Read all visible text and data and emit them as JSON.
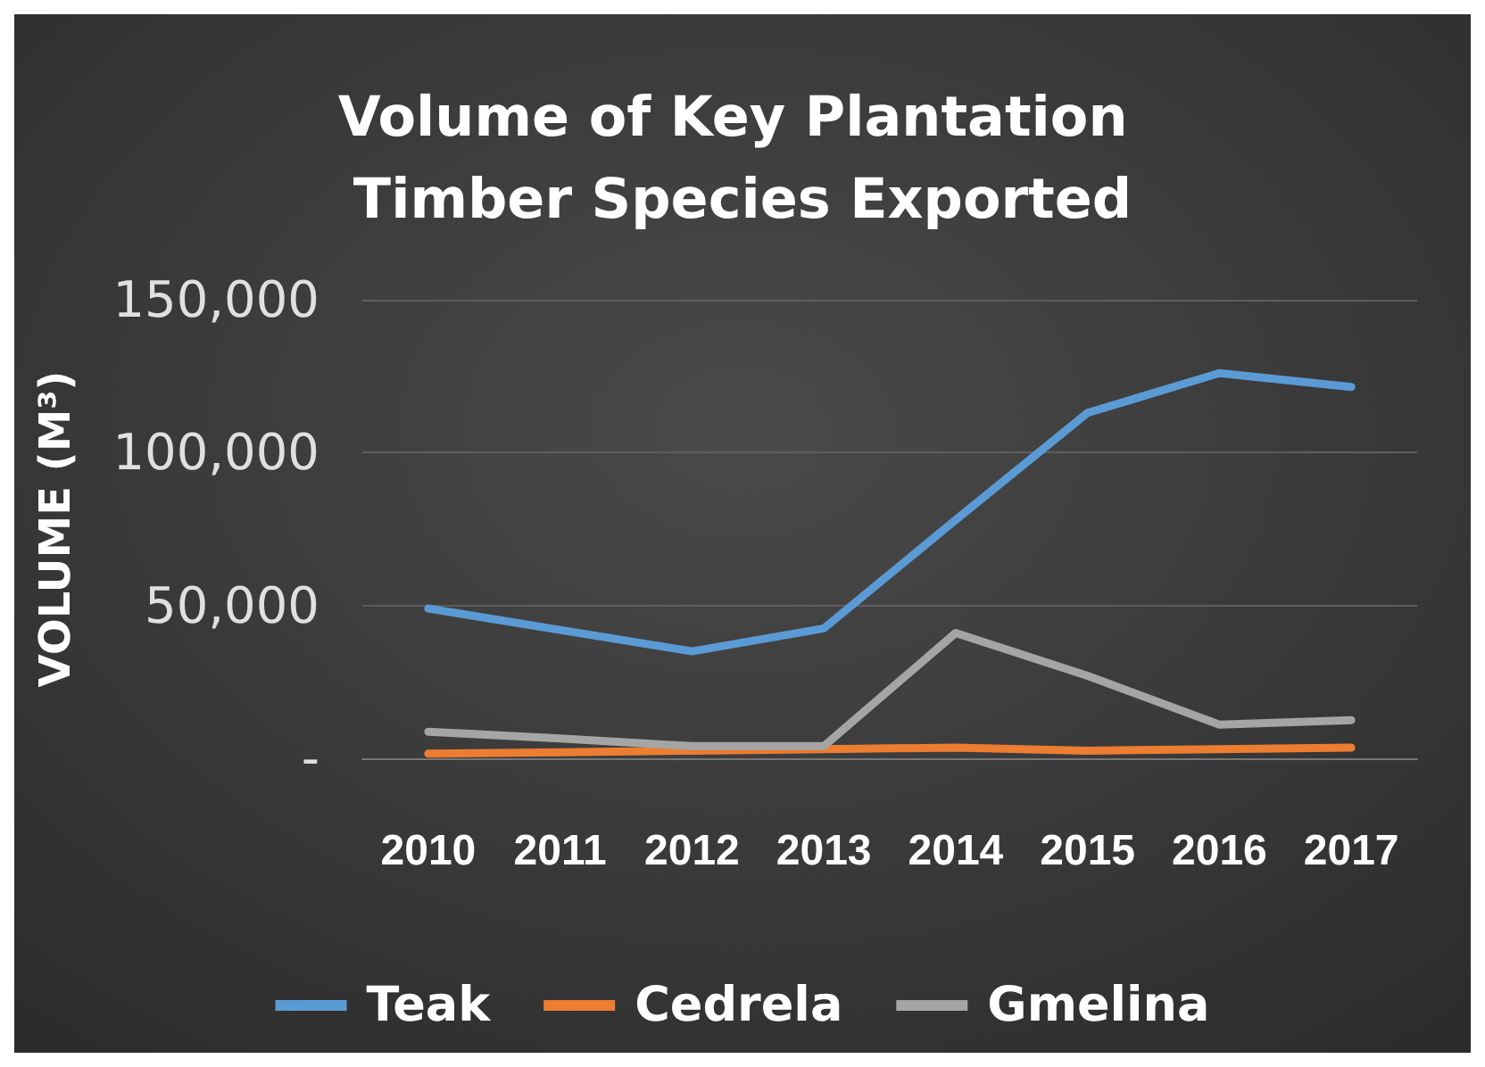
{
  "chart_data": {
    "type": "line",
    "title": "Volume of Key Plantation Timber Species Exported",
    "ylabel": "VOLUME (M³)",
    "categories": [
      "2010",
      "2011",
      "2012",
      "2013",
      "2014",
      "2015",
      "2016",
      "2017"
    ],
    "series": [
      {
        "name": "Teak",
        "color": "#5b9bd5",
        "values": [
          49000,
          42000,
          35000,
          42500,
          78000,
          113000,
          126000,
          121500
        ]
      },
      {
        "name": "Cedrela",
        "color": "#ed7d31",
        "values": [
          1500,
          2000,
          2500,
          3000,
          3500,
          2500,
          3000,
          3500
        ]
      },
      {
        "name": "Gmelina",
        "color": "#a5a5a5",
        "values": [
          8700,
          6500,
          4000,
          4000,
          41000,
          27000,
          11000,
          12500
        ]
      }
    ],
    "ylim": [
      0,
      150000
    ],
    "yticks": [
      {
        "value": 0,
        "label": "-"
      },
      {
        "value": 50000,
        "label": "50,000"
      },
      {
        "value": 100000,
        "label": "100,000"
      },
      {
        "value": 150000,
        "label": "150,000"
      }
    ],
    "grid": "y",
    "legend": "bottom",
    "marker": "none",
    "line_style": "solid"
  }
}
